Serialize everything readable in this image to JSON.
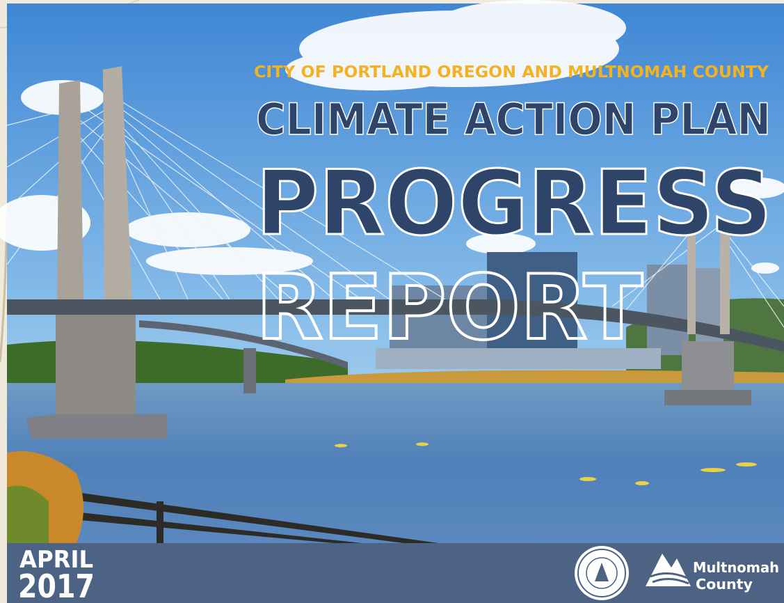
{
  "cover": {
    "subtitle": "CITY OF PORTLAND OREGON AND MULTNOMAH COUNTY",
    "title_line1": "CLIMATE ACTION PLAN",
    "title_line2": "PROGRESS",
    "title_line3": "REPORT",
    "month": "APRIL",
    "year": "2017",
    "logo_line1": "Multnomah",
    "logo_line2": "County"
  }
}
